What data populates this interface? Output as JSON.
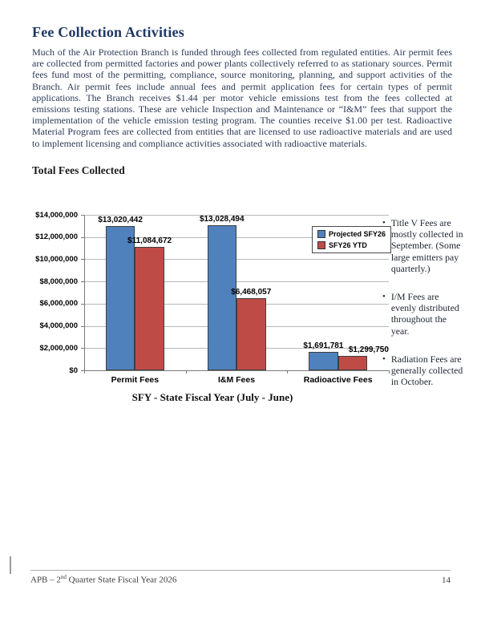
{
  "page": {
    "title": "Fee Collection Activities",
    "body_paragraph": "Much of the Air Protection Branch is funded through fees collected from regulated entities. Air permit fees are collected from permitted factories and power plants collectively referred to as stationary sources. Permit fees fund most of the permitting, compliance, source monitoring, planning, and support activities of the Branch. Air permit fees include annual fees and permit application fees for certain types of permit applications. The Branch receives $1.44 per motor vehicle emissions test from the fees collected at emissions testing stations. These are vehicle Inspection and Maintenance or “I&M” fees that support the implementation of the vehicle emission testing program.  The counties receive $1.00 per test. Radioactive Material Program fees are collected from entities that are licensed to use radioactive materials and are used to implement licensing and compliance activities associated with radioactive materials.",
    "section_heading": "Total Fees Collected"
  },
  "chart_data": {
    "type": "bar",
    "title": "Total Fees Collected",
    "categories": [
      "Permit Fees",
      "I&M Fees",
      "Radioactive Fees"
    ],
    "series": [
      {
        "name": "Projected SFY26",
        "color": "#4f81bd",
        "values": [
          13020442,
          13028494,
          1691781
        ],
        "labels": [
          "$13,020,442",
          "$13,028,494",
          "$1,691,781"
        ]
      },
      {
        "name": "SFY26 YTD",
        "color": "#bf4b47",
        "values": [
          11084672,
          6468057,
          1299750
        ],
        "labels": [
          "$11,084,672",
          "$6,468,057",
          "$1,299,750"
        ]
      }
    ],
    "y_ticks": [
      "$14,000,000",
      "$12,000,000",
      "$10,000,000",
      "$8,000,000",
      "$6,000,000",
      "$4,000,000",
      "$2,000,000",
      "$0"
    ],
    "ylim": [
      0,
      14000000
    ],
    "xlabel": "SFY - State Fiscal Year (July - June)",
    "ylabel": "",
    "grid": true,
    "legend_position": "inside-top-right"
  },
  "notes": {
    "bullet": "•",
    "items": [
      "Title V Fees are mostly collected in September. (Some large emitters pay quarterly.)",
      "I/M Fees are evenly distributed throughout the year.",
      "Radiation Fees are generally collected in October."
    ]
  },
  "footer": {
    "left_prefix": "APB – 2",
    "left_sup": "nd",
    "left_suffix": " Quarter State Fiscal Year 2026",
    "page_number": "14"
  }
}
